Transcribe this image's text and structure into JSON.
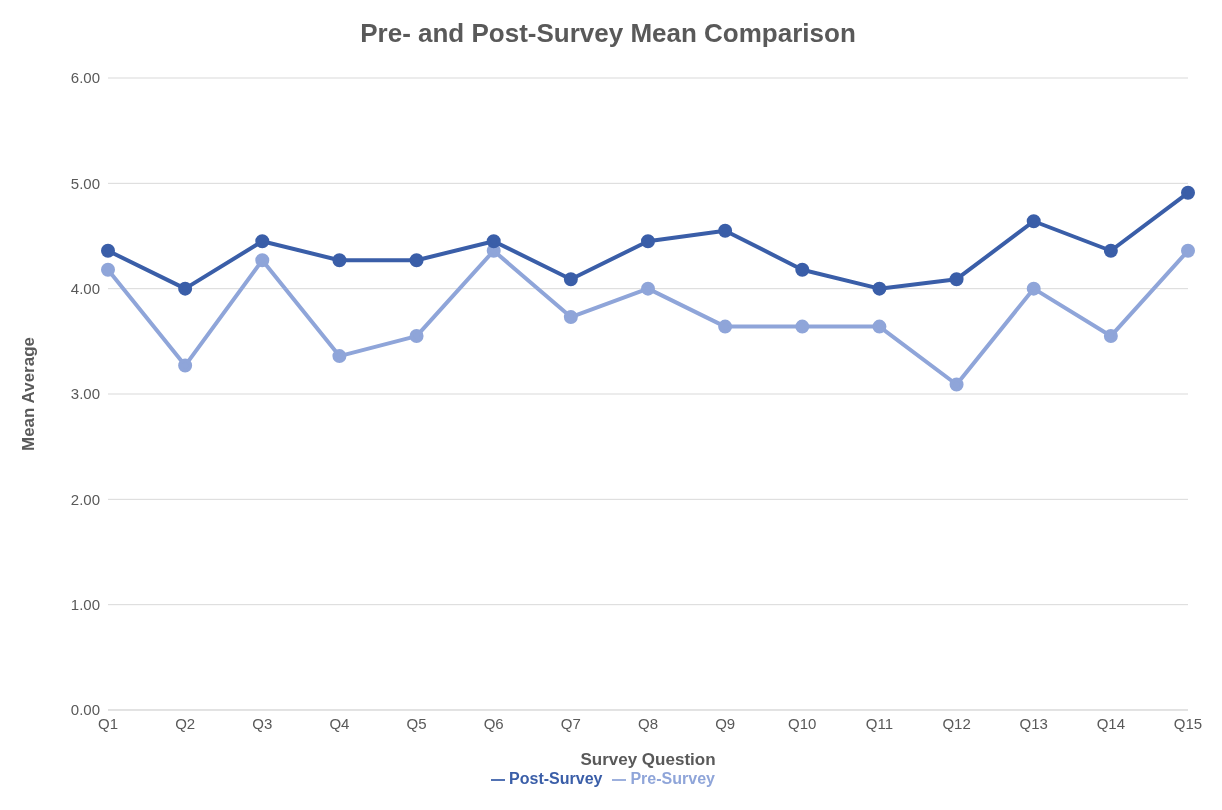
{
  "chart_data": {
    "type": "line",
    "title": "Pre- and Post-Survey Mean Comparison",
    "xlabel": "Survey Question",
    "ylabel": "Mean Average",
    "categories": [
      "Q1",
      "Q2",
      "Q3",
      "Q4",
      "Q5",
      "Q6",
      "Q7",
      "Q8",
      "Q9",
      "Q10",
      "Q11",
      "Q12",
      "Q13",
      "Q14",
      "Q15"
    ],
    "series": [
      {
        "name": "Pre-Survey",
        "color": "#8fa5d9",
        "values": [
          4.18,
          3.27,
          4.27,
          3.36,
          3.55,
          4.36,
          3.73,
          4.0,
          3.64,
          3.64,
          3.64,
          3.09,
          4.0,
          3.55,
          4.36
        ]
      },
      {
        "name": "Post-Survey",
        "color": "#3a5ea8",
        "values": [
          4.36,
          4.0,
          4.45,
          4.27,
          4.27,
          4.45,
          4.09,
          4.45,
          4.55,
          4.18,
          4.0,
          4.09,
          4.64,
          4.36,
          4.91
        ]
      }
    ],
    "ylim": [
      0,
      6
    ],
    "yticks": [
      {
        "value": 0,
        "label": "0.00"
      },
      {
        "value": 1,
        "label": "1.00"
      },
      {
        "value": 2,
        "label": "2.00"
      },
      {
        "value": 3,
        "label": "3.00"
      },
      {
        "value": 4,
        "label": "4.00"
      },
      {
        "value": 5,
        "label": "5.00"
      },
      {
        "value": 6,
        "label": "6.00"
      }
    ],
    "grid": "y",
    "legend": "bottom",
    "marker": "circle",
    "line_style": "solid"
  }
}
